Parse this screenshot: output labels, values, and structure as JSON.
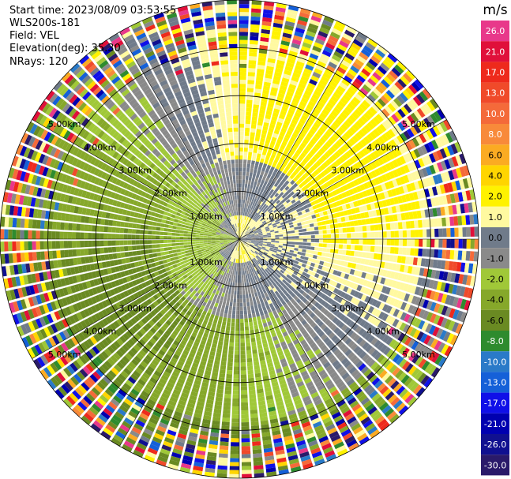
{
  "info": {
    "start_time": "Start time: 2023/08/09 03:53:55",
    "instrument": "WLS200s-181",
    "field": "Field: VEL",
    "elevation": "Elevation(deg): 35.30",
    "nrays": "NRays: 120"
  },
  "colorbar": {
    "unit": "m/s",
    "ticks": [
      "26.0",
      "21.0",
      "17.0",
      "13.0",
      "10.0",
      "8.0",
      "6.0",
      "4.0",
      "2.0",
      "1.0",
      "0.0",
      "-1.0",
      "-2.0",
      "-4.0",
      "-6.0",
      "-8.0",
      "-10.0",
      "-13.0",
      "-17.0",
      "-21.0",
      "-26.0",
      "-30.0"
    ],
    "colors": [
      "#e8388a",
      "#e0103a",
      "#ee2a1c",
      "#f04a2a",
      "#f46a3a",
      "#f88a3a",
      "#fbab22",
      "#ffd500",
      "#fff200",
      "#fff9a0",
      "#707b8a",
      "#8a8a8a",
      "#a0c838",
      "#86a82a",
      "#6a8a22",
      "#2e8b2e",
      "#2a7ac8",
      "#1560d8",
      "#1010e8",
      "#0000b0",
      "#101090",
      "#2a1a6a"
    ]
  },
  "chart_data": {
    "type": "ppi",
    "title": "",
    "field": "VEL",
    "unit": "m/s",
    "nrays": 120,
    "range_rings_km": [
      1.0,
      2.0,
      3.0,
      4.0,
      5.0
    ],
    "range_ring_labels": [
      "1.00km",
      "2.00km",
      "3.00km",
      "4.00km",
      "5.00km"
    ],
    "colorbar_ticks": [
      26.0,
      21.0,
      17.0,
      13.0,
      10.0,
      8.0,
      6.0,
      4.0,
      2.0,
      1.0,
      0.0,
      -1.0,
      -2.0,
      -4.0,
      -6.0,
      -8.0,
      -10.0,
      -13.0,
      -17.0,
      -21.0,
      -26.0,
      -30.0
    ],
    "pattern": {
      "description": "radial velocity: positive (yellow) toward north and south-center, negative (green) toward west/southwest, near-zero (grey) band",
      "zones": [
        {
          "from_km": 0.0,
          "to_km": 0.5,
          "north": 2.0,
          "south": 2.0,
          "east": 0.0,
          "west": -2.0
        },
        {
          "from_km": 0.5,
          "to_km": 1.7,
          "north": 0.0,
          "south": 0.0,
          "east": 1.0,
          "west": -2.0
        },
        {
          "from_km": 1.7,
          "to_km": 3.8,
          "north": 2.0,
          "south": -2.0,
          "east": 2.0,
          "west": -4.0
        },
        {
          "from_km": 3.8,
          "to_km": 5.0,
          "north": 2.0,
          "south": -4.0,
          "east": 1.0,
          "west": -4.0
        }
      ]
    }
  }
}
